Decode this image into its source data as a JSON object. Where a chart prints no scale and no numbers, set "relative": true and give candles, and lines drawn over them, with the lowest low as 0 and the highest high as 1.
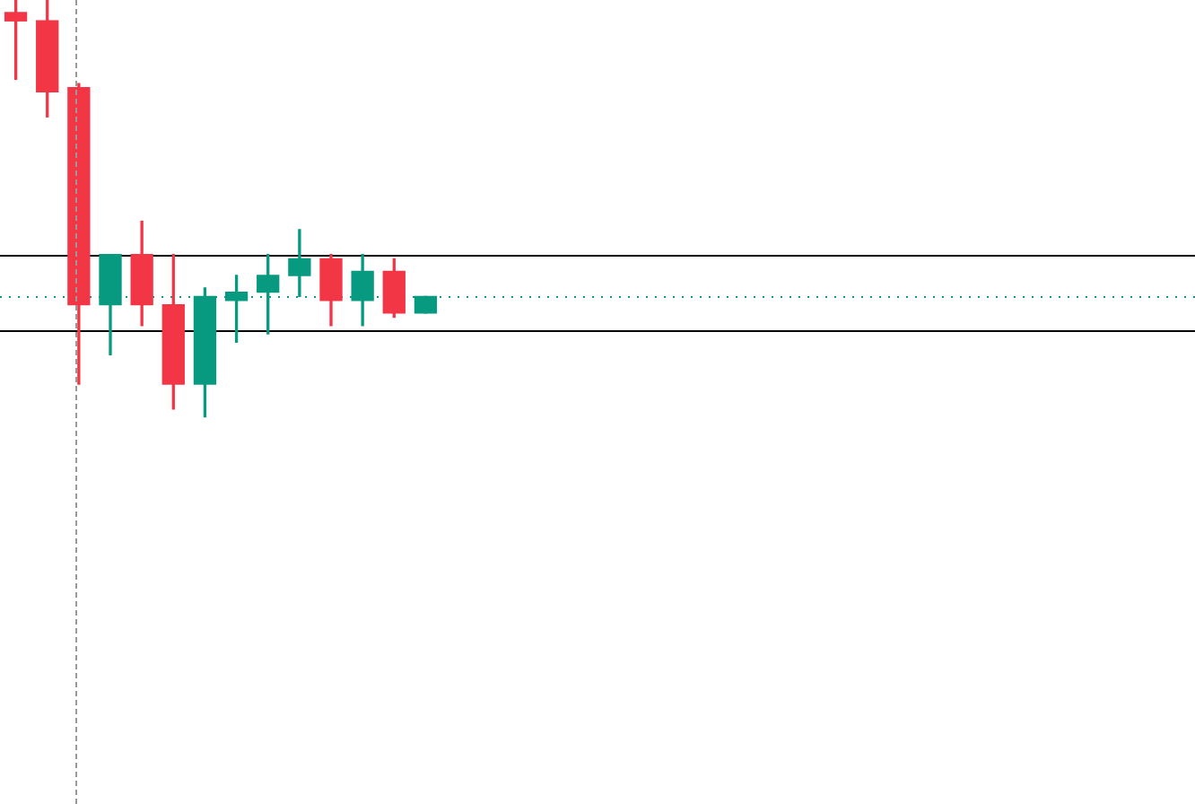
{
  "chart_data": {
    "type": "candlestick",
    "relative": true,
    "grid": false,
    "legend": false,
    "categories": [
      null,
      null,
      null,
      null,
      null,
      null,
      null,
      null,
      null,
      null,
      null,
      null,
      null,
      null
    ],
    "ohlc": [
      [
        0.97,
        1,
        0.81,
        0.95
      ],
      [
        0.95,
        1,
        0.72,
        0.78
      ],
      [
        0.79,
        0.8,
        0.08,
        0.27
      ],
      [
        0.27,
        0.39,
        0.15,
        0.39
      ],
      [
        0.39,
        0.47,
        0.22,
        0.27
      ],
      [
        0.27,
        0.39,
        0.02,
        0.08
      ],
      [
        0.08,
        0.31,
        0,
        0.29
      ],
      [
        0.28,
        0.34,
        0.18,
        0.3
      ],
      [
        0.3,
        0.39,
        0.2,
        0.34
      ],
      [
        0.34,
        0.45,
        0.29,
        0.38
      ],
      [
        0.38,
        0.39,
        0.22,
        0.28
      ],
      [
        0.28,
        0.39,
        0.22,
        0.35
      ],
      [
        0.35,
        0.38,
        0.24,
        0.25
      ],
      [
        0.25,
        0.29,
        0.25,
        0.29
      ]
    ],
    "colors": [
      "#f23645",
      "#f23645",
      "#f23645",
      "#089981",
      "#f23645",
      "#f23645",
      "#089981",
      "#089981",
      "#089981",
      "#089981",
      "#f23645",
      "#089981",
      "#f23645",
      "#089981"
    ],
    "ref_lines": [
      {
        "axis": "y",
        "value": 0.39,
        "color": "#000000",
        "line_style": "solid"
      },
      {
        "axis": "y",
        "value": 0.21,
        "color": "#000000",
        "line_style": "solid"
      },
      {
        "axis": "y",
        "value": 0.29,
        "color": "#089981",
        "line_style": "dotted"
      }
    ]
  }
}
